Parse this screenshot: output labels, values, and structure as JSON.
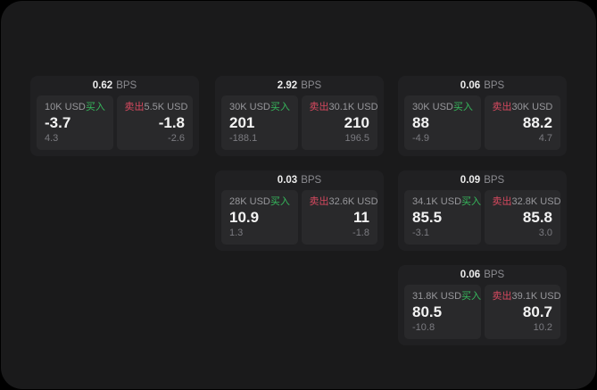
{
  "window": {
    "outer_background": "#000000",
    "background": "#1a1a1b"
  },
  "labels": {
    "bps_unit": "BPS",
    "buy": "买入",
    "sell": "卖出"
  },
  "colors": {
    "buy_green": "#36b95c",
    "sell_red": "#d6495f",
    "card_background": "#202022",
    "panel_background": "#29292b",
    "value_white": "#f3f3f3",
    "label_grey": "#97979b",
    "delta_grey": "#7b7b80"
  },
  "cards": [
    {
      "bps": "0.62",
      "buy": {
        "size": "10K USD",
        "price": "-3.7",
        "change": "4.3"
      },
      "sell": {
        "size": "5.5K USD",
        "price": "-1.8",
        "change": "-2.6"
      }
    },
    {
      "bps": "2.92",
      "buy": {
        "size": "30K USD",
        "price": "201",
        "change": "-188.1"
      },
      "sell": {
        "size": "30.1K USD",
        "price": "210",
        "change": "196.5"
      }
    },
    {
      "bps": "0.06",
      "buy": {
        "size": "30K USD",
        "price": "88",
        "change": "-4.9"
      },
      "sell": {
        "size": "30K USD",
        "price": "88.2",
        "change": "4.7"
      }
    },
    {
      "bps": "0.03",
      "buy": {
        "size": "28K USD",
        "price": "10.9",
        "change": "1.3"
      },
      "sell": {
        "size": "32.6K USD",
        "price": "11",
        "change": "-1.8"
      }
    },
    {
      "bps": "0.09",
      "buy": {
        "size": "34.1K USD",
        "price": "85.5",
        "change": "-3.1"
      },
      "sell": {
        "size": "32.8K USD",
        "price": "85.8",
        "change": "3.0"
      }
    },
    {
      "bps": "0.06",
      "buy": {
        "size": "31.8K USD",
        "price": "80.5",
        "change": "-10.8"
      },
      "sell": {
        "size": "39.1K USD",
        "price": "80.7",
        "change": "10.2"
      }
    }
  ]
}
